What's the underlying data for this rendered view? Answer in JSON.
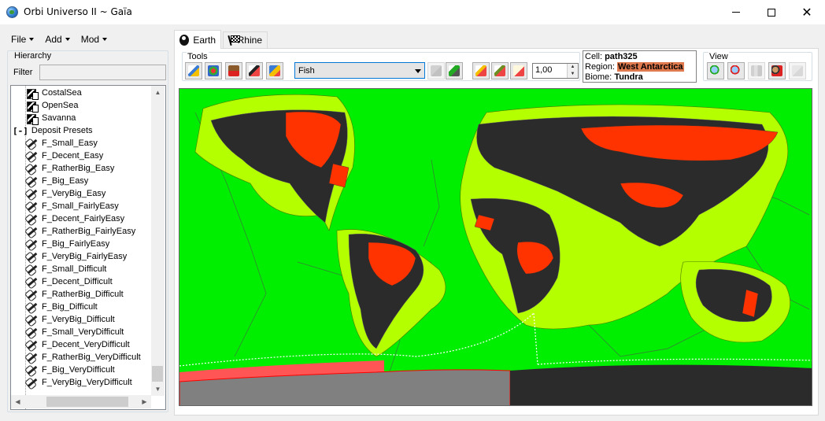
{
  "window": {
    "title": "Orbi Universo II ~ Gaïa"
  },
  "menu": [
    {
      "label": "File"
    },
    {
      "label": "Add"
    },
    {
      "label": "Mod"
    }
  ],
  "hierarchy": {
    "label": "Hierarchy",
    "filter_label": "Filter",
    "filter_value": "",
    "biome_items": [
      "CostalSea",
      "OpenSea",
      "Savanna"
    ],
    "folder_label": "Deposit Presets",
    "deposit_items": [
      "F_Small_Easy",
      "F_Decent_Easy",
      "F_RatherBig_Easy",
      "F_Big_Easy",
      "F_VeryBig_Easy",
      "F_Small_FairlyEasy",
      "F_Decent_FairlyEasy",
      "F_RatherBig_FairlyEasy",
      "F_Big_FairlyEasy",
      "F_VeryBig_FairlyEasy",
      "F_Small_Difficult",
      "F_Decent_Difficult",
      "F_RatherBig_Difficult",
      "F_Big_Difficult",
      "F_VeryBig_Difficult",
      "F_Small_VeryDifficult",
      "F_Decent_VeryDifficult",
      "F_RatherBig_VeryDifficult",
      "F_Big_VeryDifficult",
      "F_VeryBig_VeryDifficult"
    ]
  },
  "tabs": [
    {
      "label": "Earth",
      "active": true,
      "icon": "globe-icon"
    },
    {
      "label": "Rhine",
      "active": false,
      "icon": "checkered-flag-icon"
    }
  ],
  "tools": {
    "label": "Tools",
    "resource_select": "Fish",
    "brush_value": "1,00"
  },
  "info": {
    "cell_label": "Cell:",
    "cell_value": "path325",
    "region_label": "Region:",
    "region_value": "West Antarctica",
    "biome_label": "Biome:",
    "biome_value": "Tundra"
  },
  "view": {
    "label": "View"
  },
  "colors": {
    "ocean": "#00ee00",
    "coastal": "#b4ff00",
    "land": "#2b2b2b",
    "highlight": "#ff3300",
    "selected": "#808080"
  }
}
